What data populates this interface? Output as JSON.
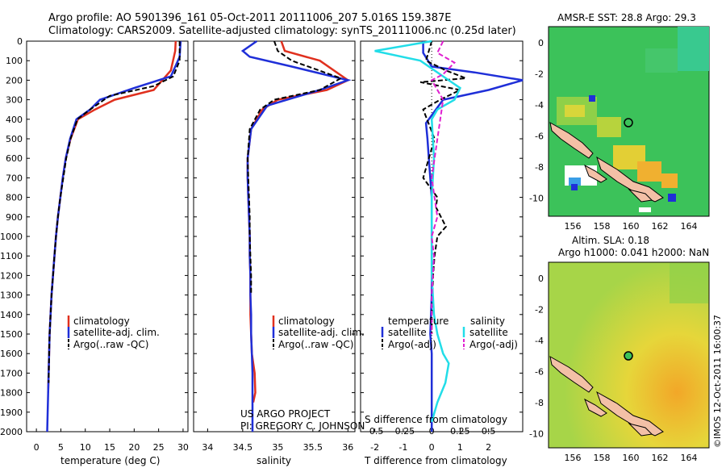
{
  "header": {
    "line1": "Argo profile: AO 5901396_161 05-Oct-2011 20111006_207 5.016S 159.387E",
    "line2": "Climatology: CARS2009. Satellite-adjusted climatology: synTS_20111006.nc (0.25d later)"
  },
  "colors": {
    "climatology": "#e0301e",
    "satellite": "#1f2fd8",
    "argo": "#000000",
    "salinity_sat": "#22dde8",
    "salinity_argo": "#e020d0",
    "ocean_green": "#3cc25a",
    "land": "#f3c0a6"
  },
  "y_axis": {
    "ticks": [
      "0",
      "100",
      "200",
      "300",
      "400",
      "500",
      "600",
      "700",
      "800",
      "900",
      "1000",
      "1100",
      "1200",
      "1300",
      "1400",
      "1500",
      "1600",
      "1700",
      "1800",
      "1900",
      "2000"
    ]
  },
  "panels": {
    "temperature": {
      "xlabel": "temperature (deg C)",
      "xticks": [
        "0",
        "5",
        "10",
        "15",
        "20",
        "25",
        "30"
      ],
      "legend": [
        "climatology",
        "satellite-adj. clim.",
        "Argo(..raw -QC)"
      ]
    },
    "salinity": {
      "xlabel": "salinity",
      "xticks": [
        "34",
        "34.5",
        "35",
        "35.5",
        "36"
      ],
      "legend": [
        "climatology",
        "satellite-adj. clim.",
        "Argo(..raw -QC)"
      ],
      "project": "US ARGO PROJECT",
      "pi": "PI: GREGORY C. JOHNSON"
    },
    "difference": {
      "xlabel": "T difference from climatology",
      "xlabel_top": "S difference from climatology",
      "xticks_top": [
        "-0.5",
        "-0.25",
        "0",
        "0.25",
        "0.5"
      ],
      "xticks": [
        "-2",
        "-1",
        "0",
        "1",
        "2"
      ],
      "legend_titles": [
        "temperature",
        "salinity"
      ],
      "legend": [
        "satellite",
        "Argo(-adj)",
        "satellite",
        "Argo(-adj)"
      ]
    }
  },
  "maps": {
    "sst": {
      "title": "AMSR-E SST: 28.8  Argo: 29.3",
      "xticks": [
        "156",
        "158",
        "160",
        "162",
        "164"
      ],
      "yticks": [
        "0",
        "-2",
        "-4",
        "-6",
        "-8",
        "-10"
      ]
    },
    "sla": {
      "title1": "Altim. SLA: 0.18",
      "title2": "Argo h1000: 0.041  h2000: NaN",
      "xticks": [
        "156",
        "158",
        "160",
        "162",
        "164"
      ],
      "yticks": [
        "0",
        "-2",
        "-4",
        "-6",
        "-8",
        "-10"
      ]
    },
    "credit": "©IMOS 12-Oct-2011 16:00:37"
  },
  "chart_data": [
    {
      "type": "line",
      "panel": "temperature",
      "xlabel": "temperature (deg C)",
      "xlim": [
        -2,
        31
      ],
      "ylim": [
        2000,
        0
      ],
      "series": [
        {
          "name": "climatology",
          "x": [
            28.5,
            28.4,
            27.5,
            24,
            16,
            12,
            8.5,
            7,
            6,
            5.4,
            4.9,
            4.4,
            4,
            3.7,
            3.4,
            3.1,
            2.9,
            2.7,
            2.6,
            2.5,
            2.4
          ],
          "y": [
            0,
            50,
            150,
            250,
            300,
            350,
            400,
            500,
            600,
            700,
            800,
            900,
            1000,
            1100,
            1200,
            1300,
            1400,
            1500,
            1600,
            1700,
            1800
          ]
        },
        {
          "name": "satellite-adj. clim.",
          "x": [
            29.5,
            29.3,
            27.5,
            20,
            13,
            11,
            8.2,
            6.9,
            6,
            5.4,
            4.9,
            4.4,
            4,
            3.7,
            3.4,
            3.1,
            2.9,
            2.7,
            2.6,
            2.5,
            2.4,
            2.2
          ],
          "y": [
            0,
            80,
            180,
            240,
            300,
            350,
            400,
            500,
            600,
            700,
            800,
            900,
            1000,
            1100,
            1200,
            1300,
            1400,
            1500,
            1600,
            1700,
            1800,
            2000
          ]
        },
        {
          "name": "Argo(..raw -QC)",
          "x": [
            29.3,
            29.3,
            28,
            24,
            15,
            11,
            8.4,
            7,
            6.1,
            5.5,
            4.9,
            4.4,
            4,
            3.7,
            3.4,
            3.1,
            2.9,
            2.7,
            2.6,
            2.5
          ],
          "y": [
            0,
            100,
            180,
            230,
            280,
            350,
            400,
            500,
            600,
            700,
            800,
            900,
            1000,
            1100,
            1200,
            1300,
            1400,
            1500,
            1600,
            1750
          ]
        }
      ]
    },
    {
      "type": "line",
      "panel": "salinity",
      "xlabel": "salinity",
      "xlim": [
        33.8,
        36.1
      ],
      "ylim": [
        2000,
        0
      ],
      "series": [
        {
          "name": "climatology",
          "x": [
            35.05,
            35.1,
            35.6,
            36,
            35.7,
            35.0,
            34.78,
            34.62,
            34.57,
            34.57,
            34.58,
            34.59,
            34.6,
            34.6,
            34.61,
            34.61,
            34.61,
            34.62,
            34.63,
            34.67,
            34.68,
            34.65
          ],
          "y": [
            0,
            50,
            100,
            200,
            250,
            300,
            350,
            450,
            600,
            700,
            800,
            900,
            1000,
            1100,
            1200,
            1300,
            1400,
            1500,
            1600,
            1700,
            1800,
            1850
          ]
        },
        {
          "name": "satellite-adj. clim.",
          "x": [
            34.7,
            34.5,
            34.6,
            35.2,
            36.0,
            35.6,
            34.85,
            34.62,
            34.57,
            34.57,
            34.58,
            34.59,
            34.6,
            34.6,
            34.61,
            34.61,
            34.62,
            34.62,
            34.63,
            34.64,
            34.64,
            34.64
          ],
          "y": [
            0,
            50,
            80,
            130,
            200,
            250,
            330,
            450,
            600,
            700,
            800,
            900,
            1000,
            1100,
            1200,
            1300,
            1400,
            1500,
            1600,
            1700,
            1900,
            2000
          ]
        },
        {
          "name": "Argo(..raw -QC)",
          "x": [
            34.95,
            35.0,
            35.2,
            35.9,
            35.6,
            34.95,
            34.75,
            34.6,
            34.57,
            34.58,
            34.59,
            34.6,
            34.6,
            34.61,
            34.62,
            34.62
          ],
          "y": [
            0,
            50,
            100,
            190,
            250,
            300,
            350,
            450,
            600,
            700,
            800,
            900,
            1000,
            1100,
            1200,
            1300
          ]
        }
      ]
    },
    {
      "type": "line",
      "panel": "difference",
      "xlabel": "T difference from climatology",
      "xlim": [
        -2.5,
        3.2
      ],
      "ylim": [
        2000,
        0
      ],
      "series": [
        {
          "name": "temperature satellite",
          "x": [
            -0.3,
            -0.3,
            0,
            1.5,
            3.2,
            2,
            0.4,
            -0.2,
            -0.15,
            -0.1,
            -0.05,
            0,
            0,
            0,
            0,
            0,
            -0.05,
            0,
            0,
            0,
            0
          ],
          "y": [
            0,
            60,
            130,
            160,
            200,
            250,
            300,
            420,
            500,
            600,
            700,
            800,
            900,
            1000,
            1100,
            1300,
            1500,
            1600,
            1700,
            1800,
            2000
          ]
        },
        {
          "name": "temperature Argo(-adj)",
          "x": [
            0,
            -0.2,
            0.5,
            1.2,
            -0.4,
            1.0,
            0.3,
            -0.3,
            0.1,
            -0.3,
            0.2,
            0.15,
            0.5,
            0.2,
            0.1,
            0.05,
            0,
            0
          ],
          "y": [
            0,
            100,
            150,
            190,
            210,
            250,
            300,
            350,
            500,
            700,
            800,
            850,
            950,
            1000,
            1100,
            1200,
            1400,
            1500
          ]
        },
        {
          "name": "salinity satellite",
          "x": [
            0,
            -0.5,
            -0.1,
            0.1,
            0.25,
            0.2,
            0.05,
            0,
            0.02,
            0,
            0,
            0,
            0.02,
            0.05,
            0.1,
            0.15,
            0.12,
            0.05,
            0
          ],
          "y": [
            0,
            50,
            100,
            180,
            240,
            300,
            350,
            400,
            600,
            800,
            1000,
            1200,
            1400,
            1500,
            1600,
            1650,
            1750,
            1850,
            1950
          ]
        },
        {
          "name": "salinity Argo(-adj)",
          "x": [
            0.1,
            0.05,
            0.2,
            0.1,
            0,
            0.1,
            0,
            0.05,
            0,
            0.02,
            0,
            0
          ],
          "y": [
            0,
            60,
            110,
            170,
            200,
            300,
            700,
            900,
            1000,
            1100,
            1300,
            1500
          ]
        }
      ]
    }
  ]
}
